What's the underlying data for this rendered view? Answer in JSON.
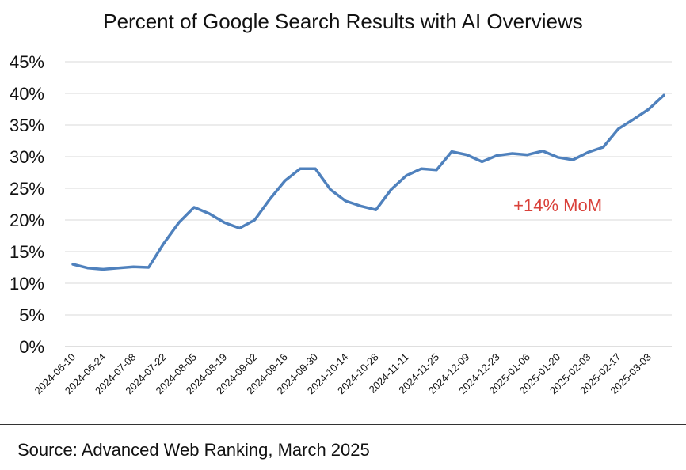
{
  "chart_data": {
    "type": "line",
    "title": "Percent of Google Search Results with AI Overviews",
    "xlabel": "",
    "ylabel": "",
    "ylim": [
      0,
      0.45
    ],
    "yticks": [
      0,
      0.05,
      0.1,
      0.15,
      0.2,
      0.25,
      0.3,
      0.35,
      0.4,
      0.45
    ],
    "ytick_labels": [
      "0%",
      "5%",
      "10%",
      "15%",
      "20%",
      "25%",
      "30%",
      "35%",
      "40%",
      "45%"
    ],
    "grid": true,
    "xtick_labels": [
      "2024-06-10",
      "2024-06-24",
      "2024-07-08",
      "2024-07-22",
      "2024-08-05",
      "2024-08-19",
      "2024-09-02",
      "2024-09-16",
      "2024-09-30",
      "2024-10-14",
      "2024-10-28",
      "2024-11-11",
      "2024-11-25",
      "2024-12-09",
      "2024-12-23",
      "2025-01-06",
      "2025-01-20",
      "2025-02-03",
      "2025-02-17",
      "2025-03-03"
    ],
    "x": [
      "2024-06-10",
      "2024-06-17",
      "2024-06-24",
      "2024-07-01",
      "2024-07-08",
      "2024-07-15",
      "2024-07-22",
      "2024-07-29",
      "2024-08-05",
      "2024-08-12",
      "2024-08-19",
      "2024-08-26",
      "2024-09-02",
      "2024-09-09",
      "2024-09-16",
      "2024-09-23",
      "2024-09-30",
      "2024-10-07",
      "2024-10-14",
      "2024-10-21",
      "2024-10-28",
      "2024-11-04",
      "2024-11-11",
      "2024-11-18",
      "2024-11-25",
      "2024-12-02",
      "2024-12-09",
      "2024-12-16",
      "2024-12-23",
      "2024-12-30",
      "2025-01-06",
      "2025-01-13",
      "2025-01-20",
      "2025-01-27",
      "2025-02-03",
      "2025-02-10",
      "2025-02-17",
      "2025-02-24",
      "2025-03-03",
      "2025-03-10"
    ],
    "series": [
      {
        "name": "",
        "color": "#4f81bd",
        "values": [
          0.13,
          0.124,
          0.122,
          0.124,
          0.126,
          0.125,
          0.163,
          0.196,
          0.22,
          0.21,
          0.196,
          0.187,
          0.2,
          0.233,
          0.262,
          0.281,
          0.281,
          0.248,
          0.23,
          0.222,
          0.216,
          0.248,
          0.27,
          0.281,
          0.279,
          0.308,
          0.303,
          0.292,
          0.302,
          0.305,
          0.303,
          0.309,
          0.299,
          0.295,
          0.307,
          0.315,
          0.344,
          0.359,
          0.375,
          0.397
        ]
      }
    ],
    "annotations": [
      {
        "text": "+14% MoM",
        "color": "#d9413a",
        "x": "2025-01-20",
        "y": 0.214
      }
    ]
  },
  "footer": {
    "source": "Source: Advanced Web Ranking, March 2025"
  }
}
